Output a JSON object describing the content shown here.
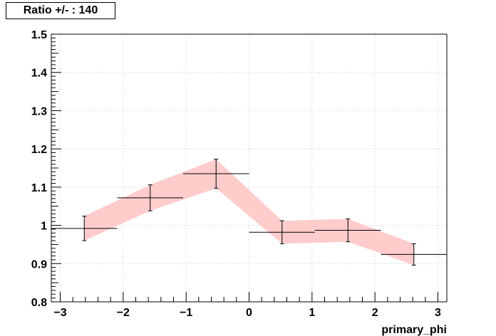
{
  "chart_data": {
    "type": "line",
    "title": "Ratio +/- : 140",
    "xlabel": "primary_phi",
    "ylabel": "",
    "xlim": [
      -3.1416,
      3.1416
    ],
    "ylim": [
      0.8,
      1.5
    ],
    "grid": true,
    "x_ticks": [
      "−3",
      "−2",
      "−1",
      "0",
      "1",
      "2",
      "3"
    ],
    "x_tick_values": [
      -3,
      -2,
      -1,
      0,
      1,
      2,
      3
    ],
    "y_ticks": [
      "0.8",
      "0.9",
      "1",
      "1.1",
      "1.2",
      "1.3",
      "1.4",
      "1.5"
    ],
    "y_tick_values": [
      0.8,
      0.9,
      1.0,
      1.1,
      1.2,
      1.3,
      1.4,
      1.5
    ],
    "band_color": "#ffcccc",
    "series": [
      {
        "x": [
          -2.618,
          -1.571,
          -0.524,
          0.524,
          1.571,
          2.618
        ],
        "x_low": [
          -3.1416,
          -2.094,
          -1.047,
          0.0,
          1.047,
          2.094
        ],
        "x_high": [
          -2.094,
          -1.047,
          0.0,
          1.047,
          2.094,
          3.1416
        ],
        "y": [
          0.992,
          1.072,
          1.135,
          0.982,
          0.987,
          0.924
        ],
        "y_err": [
          0.032,
          0.034,
          0.038,
          0.03,
          0.03,
          0.028
        ]
      }
    ]
  }
}
